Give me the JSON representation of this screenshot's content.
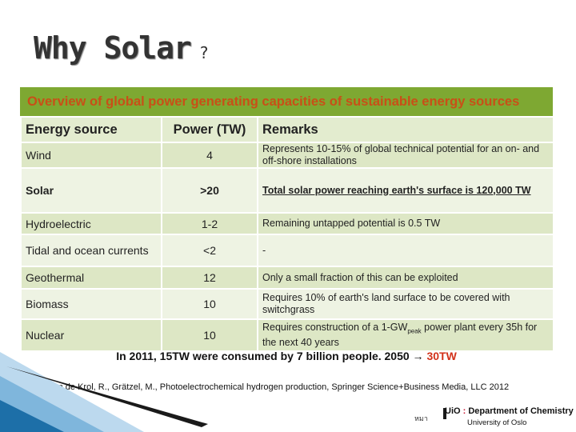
{
  "slide": {
    "title": "Why Solar",
    "title_suffix": "?"
  },
  "table": {
    "banner": "Overview of global power generating capacities of sustainable energy sources",
    "headers": [
      "Energy source",
      "Power (TW)",
      "Remarks"
    ],
    "rows": [
      {
        "source": "Wind",
        "power": "4",
        "remarks": "Represents 10-15% of global technical potential for an on- and off-shore installations"
      },
      {
        "source": "Solar",
        "power": ">20",
        "remarks": "Total solar power reaching earth's surface is 120,000 TW"
      },
      {
        "source": "Hydroelectric",
        "power": "1-2",
        "remarks": "Remaining untapped potential is 0.5 TW"
      },
      {
        "source": "Tidal and ocean currents",
        "power": "<2",
        "remarks": "-"
      },
      {
        "source": "Geothermal",
        "power": "12",
        "remarks": "Only a small fraction of this can be exploited"
      },
      {
        "source": "Biomass",
        "power": "10",
        "remarks": "Requires 10% of earth's land surface to be covered with switchgrass"
      },
      {
        "source": "Nuclear",
        "power": "10",
        "remarks_pre": "Requires construction of a 1-GW",
        "remarks_sub": "peak",
        "remarks_post": " power plant every 35h for the next 40 years"
      }
    ]
  },
  "footer": {
    "text_main": "In 2011, 15TW were consumed by 7 billion people. 2050 → ",
    "text_highlight": "30TW",
    "citation": "van de Krol, R., Grätzel, M., Photoelectrochemical hydrogen production, Springer Science+Business Media, LLC 2012"
  },
  "branding": {
    "small_text": "หมา",
    "logo_mark": "UiO",
    "department": "Department of Chemistry",
    "university": "University of Oslo"
  },
  "colors": {
    "banner_bg": "#7ea832",
    "banner_text": "#c94f17",
    "row_odd": "#dde7c5",
    "row_even": "#eef3e3",
    "highlight": "#d2321a",
    "accent_blue": "#1d6fa8"
  }
}
